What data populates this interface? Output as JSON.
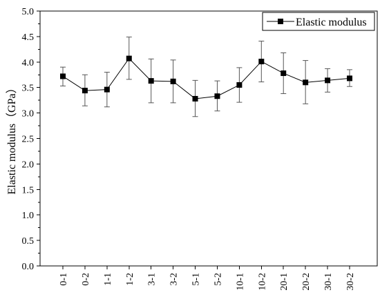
{
  "chart_data": {
    "type": "line",
    "title": "",
    "xlabel": "",
    "ylabel": "Elastic modulus（GPa）",
    "ylim": [
      0.0,
      5.0
    ],
    "yticks": [
      0.0,
      0.5,
      1.0,
      1.5,
      2.0,
      2.5,
      3.0,
      3.5,
      4.0,
      4.5,
      5.0
    ],
    "ytick_labels": [
      "0.0",
      "0.5",
      "1.0",
      "1.5",
      "2.0",
      "2.5",
      "3.0",
      "3.5",
      "4.0",
      "4.5",
      "5.0"
    ],
    "categories": [
      "0-1",
      "0-2",
      "1-1",
      "1-2",
      "3-1",
      "3-2",
      "5-1",
      "5-2",
      "10-1",
      "10-2",
      "20-1",
      "20-2",
      "30-1",
      "30-2"
    ],
    "series": [
      {
        "name": "Elastic modulus",
        "values": [
          3.72,
          3.44,
          3.46,
          4.07,
          3.63,
          3.62,
          3.28,
          3.33,
          3.55,
          4.01,
          3.78,
          3.6,
          3.64,
          3.68
        ],
        "error_upper": [
          3.9,
          3.75,
          3.8,
          4.49,
          4.06,
          4.04,
          3.64,
          3.63,
          3.89,
          4.41,
          4.18,
          4.03,
          3.87,
          3.85
        ],
        "error_lower": [
          3.53,
          3.14,
          3.12,
          3.66,
          3.2,
          3.2,
          2.93,
          3.04,
          3.21,
          3.61,
          3.38,
          3.18,
          3.41,
          3.52
        ],
        "color": "#000000",
        "marker": "square"
      }
    ],
    "grid": false,
    "legend_position": "top-right"
  }
}
